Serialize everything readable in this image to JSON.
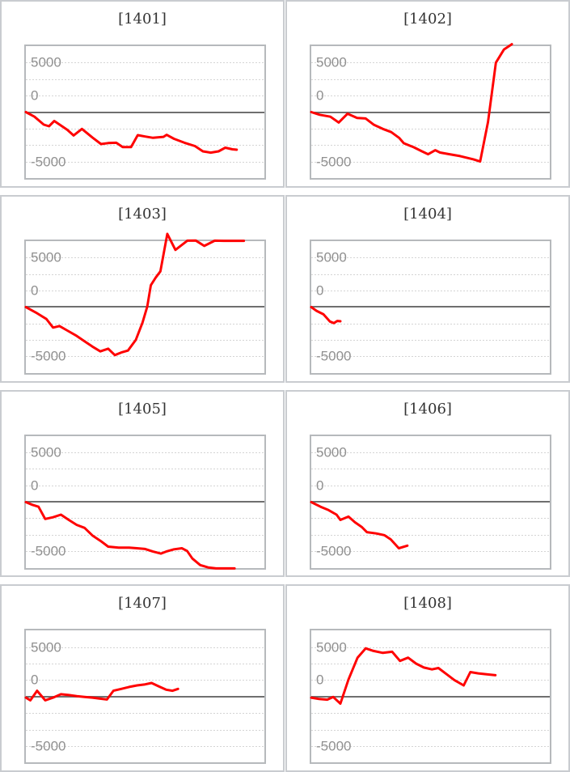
{
  "colors": {
    "line": "#ff0000",
    "gridline": "#d4d4d4",
    "zero_line": "#6f6f6f",
    "plot_border": "#b6b9bc",
    "tile_border": "#c9ccd0",
    "tick_label": "#909090",
    "title_text": "#333333",
    "background": "#ffffff"
  },
  "axis": {
    "tick_labels": [
      "5000",
      "0",
      "-5000"
    ],
    "tick_values": [
      5000,
      0,
      -5000
    ],
    "range": [
      -10000,
      10000
    ],
    "grid_interval": 2500
  },
  "chart_data": [
    {
      "type": "line",
      "title": "[1401]",
      "machine_no": "1401",
      "ylim": [
        -10000,
        10000
      ],
      "ytick_labels": [
        "5000",
        "0",
        "-5000"
      ],
      "x_unit": "fraction_of_plot_width",
      "y_unit": "payout_count",
      "points": [
        [
          0,
          0
        ],
        [
          0.036,
          -700
        ],
        [
          0.075,
          -1900
        ],
        [
          0.097,
          -2150
        ],
        [
          0.119,
          -1350
        ],
        [
          0.174,
          -2700
        ],
        [
          0.2,
          -3550
        ],
        [
          0.235,
          -2550
        ],
        [
          0.279,
          -3850
        ],
        [
          0.315,
          -4850
        ],
        [
          0.345,
          -4700
        ],
        [
          0.379,
          -4650
        ],
        [
          0.406,
          -5300
        ],
        [
          0.441,
          -5300
        ],
        [
          0.469,
          -3500
        ],
        [
          0.5,
          -3700
        ],
        [
          0.533,
          -3900
        ],
        [
          0.577,
          -3750
        ],
        [
          0.59,
          -3450
        ],
        [
          0.621,
          -4050
        ],
        [
          0.665,
          -4650
        ],
        [
          0.709,
          -5150
        ],
        [
          0.742,
          -5950
        ],
        [
          0.775,
          -6150
        ],
        [
          0.808,
          -5950
        ],
        [
          0.836,
          -5400
        ],
        [
          0.866,
          -5650
        ],
        [
          0.884,
          -5700
        ]
      ]
    },
    {
      "type": "line",
      "title": "[1402]",
      "machine_no": "1402",
      "ylim": [
        -10000,
        10000
      ],
      "ytick_labels": [
        "5000",
        "0",
        "-5000"
      ],
      "x_unit": "fraction_of_plot_width",
      "y_unit": "payout_count",
      "points": [
        [
          0,
          0
        ],
        [
          0.035,
          -400
        ],
        [
          0.08,
          -700
        ],
        [
          0.115,
          -1580
        ],
        [
          0.152,
          -250
        ],
        [
          0.192,
          -890
        ],
        [
          0.228,
          -970
        ],
        [
          0.263,
          -1940
        ],
        [
          0.3,
          -2550
        ],
        [
          0.335,
          -3030
        ],
        [
          0.368,
          -3900
        ],
        [
          0.388,
          -4730
        ],
        [
          0.43,
          -5340
        ],
        [
          0.464,
          -5950
        ],
        [
          0.49,
          -6390
        ],
        [
          0.52,
          -5780
        ],
        [
          0.54,
          -6140
        ],
        [
          0.58,
          -6390
        ],
        [
          0.624,
          -6680
        ],
        [
          0.68,
          -7160
        ],
        [
          0.708,
          -7500
        ],
        [
          0.741,
          -1500
        ],
        [
          0.774,
          7500
        ],
        [
          0.808,
          9500
        ],
        [
          0.841,
          10300
        ]
      ]
    },
    {
      "type": "line",
      "title": "[1403]",
      "machine_no": "1403",
      "ylim": [
        -10000,
        10000
      ],
      "ytick_labels": [
        "5000",
        "0",
        "-5000"
      ],
      "x_unit": "fraction_of_plot_width",
      "y_unit": "payout_count",
      "points": [
        [
          0,
          0
        ],
        [
          0.047,
          -930
        ],
        [
          0.086,
          -1800
        ],
        [
          0.114,
          -3100
        ],
        [
          0.141,
          -2870
        ],
        [
          0.174,
          -3560
        ],
        [
          0.213,
          -4370
        ],
        [
          0.246,
          -5180
        ],
        [
          0.279,
          -5990
        ],
        [
          0.312,
          -6710
        ],
        [
          0.345,
          -6310
        ],
        [
          0.373,
          -7280
        ],
        [
          0.4,
          -6880
        ],
        [
          0.428,
          -6590
        ],
        [
          0.461,
          -4975
        ],
        [
          0.489,
          -2350
        ],
        [
          0.509,
          80
        ],
        [
          0.524,
          3320
        ],
        [
          0.544,
          4450
        ],
        [
          0.564,
          5420
        ],
        [
          0.593,
          11100
        ],
        [
          0.627,
          8670
        ],
        [
          0.677,
          10070
        ],
        [
          0.712,
          10100
        ],
        [
          0.748,
          9270
        ],
        [
          0.792,
          10070
        ],
        [
          0.83,
          10050
        ],
        [
          0.87,
          10050
        ],
        [
          0.914,
          10050
        ]
      ]
    },
    {
      "type": "line",
      "title": "[1404]",
      "machine_no": "1404",
      "ylim": [
        -10000,
        10000
      ],
      "ytick_labels": [
        "5000",
        "0",
        "-5000"
      ],
      "x_unit": "fraction_of_plot_width",
      "y_unit": "payout_count",
      "points": [
        [
          0,
          0
        ],
        [
          0.022,
          -570
        ],
        [
          0.051,
          -1090
        ],
        [
          0.078,
          -2180
        ],
        [
          0.095,
          -2430
        ],
        [
          0.109,
          -2100
        ],
        [
          0.122,
          -2150
        ]
      ]
    },
    {
      "type": "line",
      "title": "[1405]",
      "machine_no": "1405",
      "ylim": [
        -10000,
        10000
      ],
      "ytick_labels": [
        "5000",
        "0",
        "-5000"
      ],
      "x_unit": "fraction_of_plot_width",
      "y_unit": "payout_count",
      "points": [
        [
          0,
          0
        ],
        [
          0.027,
          -400
        ],
        [
          0.053,
          -700
        ],
        [
          0.081,
          -2550
        ],
        [
          0.114,
          -2300
        ],
        [
          0.147,
          -1900
        ],
        [
          0.18,
          -2700
        ],
        [
          0.213,
          -3450
        ],
        [
          0.246,
          -3900
        ],
        [
          0.279,
          -5050
        ],
        [
          0.312,
          -5850
        ],
        [
          0.345,
          -6750
        ],
        [
          0.389,
          -6900
        ],
        [
          0.433,
          -6900
        ],
        [
          0.466,
          -7000
        ],
        [
          0.5,
          -7100
        ],
        [
          0.533,
          -7500
        ],
        [
          0.566,
          -7800
        ],
        [
          0.588,
          -7500
        ],
        [
          0.621,
          -7150
        ],
        [
          0.654,
          -7000
        ],
        [
          0.676,
          -7400
        ],
        [
          0.698,
          -8550
        ],
        [
          0.731,
          -9550
        ],
        [
          0.764,
          -9900
        ],
        [
          0.797,
          -10050
        ],
        [
          0.875,
          -10050
        ]
      ]
    },
    {
      "type": "line",
      "title": "[1406]",
      "machine_no": "1406",
      "ylim": [
        -10000,
        10000
      ],
      "ytick_labels": [
        "5000",
        "0",
        "-5000"
      ],
      "x_unit": "fraction_of_plot_width",
      "y_unit": "payout_count",
      "points": [
        [
          0,
          0
        ],
        [
          0.039,
          -700
        ],
        [
          0.072,
          -1200
        ],
        [
          0.106,
          -1900
        ],
        [
          0.122,
          -2700
        ],
        [
          0.156,
          -2200
        ],
        [
          0.183,
          -3050
        ],
        [
          0.211,
          -3750
        ],
        [
          0.233,
          -4550
        ],
        [
          0.272,
          -4750
        ],
        [
          0.306,
          -5000
        ],
        [
          0.333,
          -5650
        ],
        [
          0.367,
          -7000
        ],
        [
          0.403,
          -6600
        ]
      ]
    },
    {
      "type": "line",
      "title": "[1407]",
      "machine_no": "1407",
      "ylim": [
        -10000,
        10000
      ],
      "ytick_labels": [
        "5000",
        "0",
        "-5000"
      ],
      "x_unit": "fraction_of_plot_width",
      "y_unit": "payout_count",
      "points": [
        [
          0,
          -200
        ],
        [
          0.019,
          -600
        ],
        [
          0.047,
          850
        ],
        [
          0.081,
          -600
        ],
        [
          0.114,
          -200
        ],
        [
          0.147,
          320
        ],
        [
          0.18,
          200
        ],
        [
          0.213,
          40
        ],
        [
          0.246,
          -80
        ],
        [
          0.279,
          -200
        ],
        [
          0.312,
          -360
        ],
        [
          0.34,
          -480
        ],
        [
          0.367,
          850
        ],
        [
          0.4,
          1130
        ],
        [
          0.433,
          1420
        ],
        [
          0.466,
          1660
        ],
        [
          0.5,
          1820
        ],
        [
          0.527,
          2020
        ],
        [
          0.555,
          1540
        ],
        [
          0.588,
          1010
        ],
        [
          0.615,
          850
        ],
        [
          0.638,
          1130
        ]
      ]
    },
    {
      "type": "line",
      "title": "[1408]",
      "machine_no": "1408",
      "ylim": [
        -10000,
        10000
      ],
      "ytick_labels": [
        "5000",
        "0",
        "-5000"
      ],
      "x_unit": "fraction_of_plot_width",
      "y_unit": "payout_count",
      "points": [
        [
          0,
          -200
        ],
        [
          0.033,
          -400
        ],
        [
          0.067,
          -500
        ],
        [
          0.092,
          -100
        ],
        [
          0.122,
          -1100
        ],
        [
          0.156,
          2550
        ],
        [
          0.194,
          5870
        ],
        [
          0.228,
          7280
        ],
        [
          0.261,
          6880
        ],
        [
          0.3,
          6590
        ],
        [
          0.339,
          6760
        ],
        [
          0.372,
          5380
        ],
        [
          0.406,
          5870
        ],
        [
          0.439,
          4975
        ],
        [
          0.472,
          4370
        ],
        [
          0.506,
          4090
        ],
        [
          0.533,
          4290
        ],
        [
          0.567,
          3360
        ],
        [
          0.6,
          2470
        ],
        [
          0.639,
          1660
        ],
        [
          0.667,
          3680
        ],
        [
          0.7,
          3480
        ],
        [
          0.739,
          3320
        ],
        [
          0.772,
          3200
        ]
      ]
    }
  ]
}
